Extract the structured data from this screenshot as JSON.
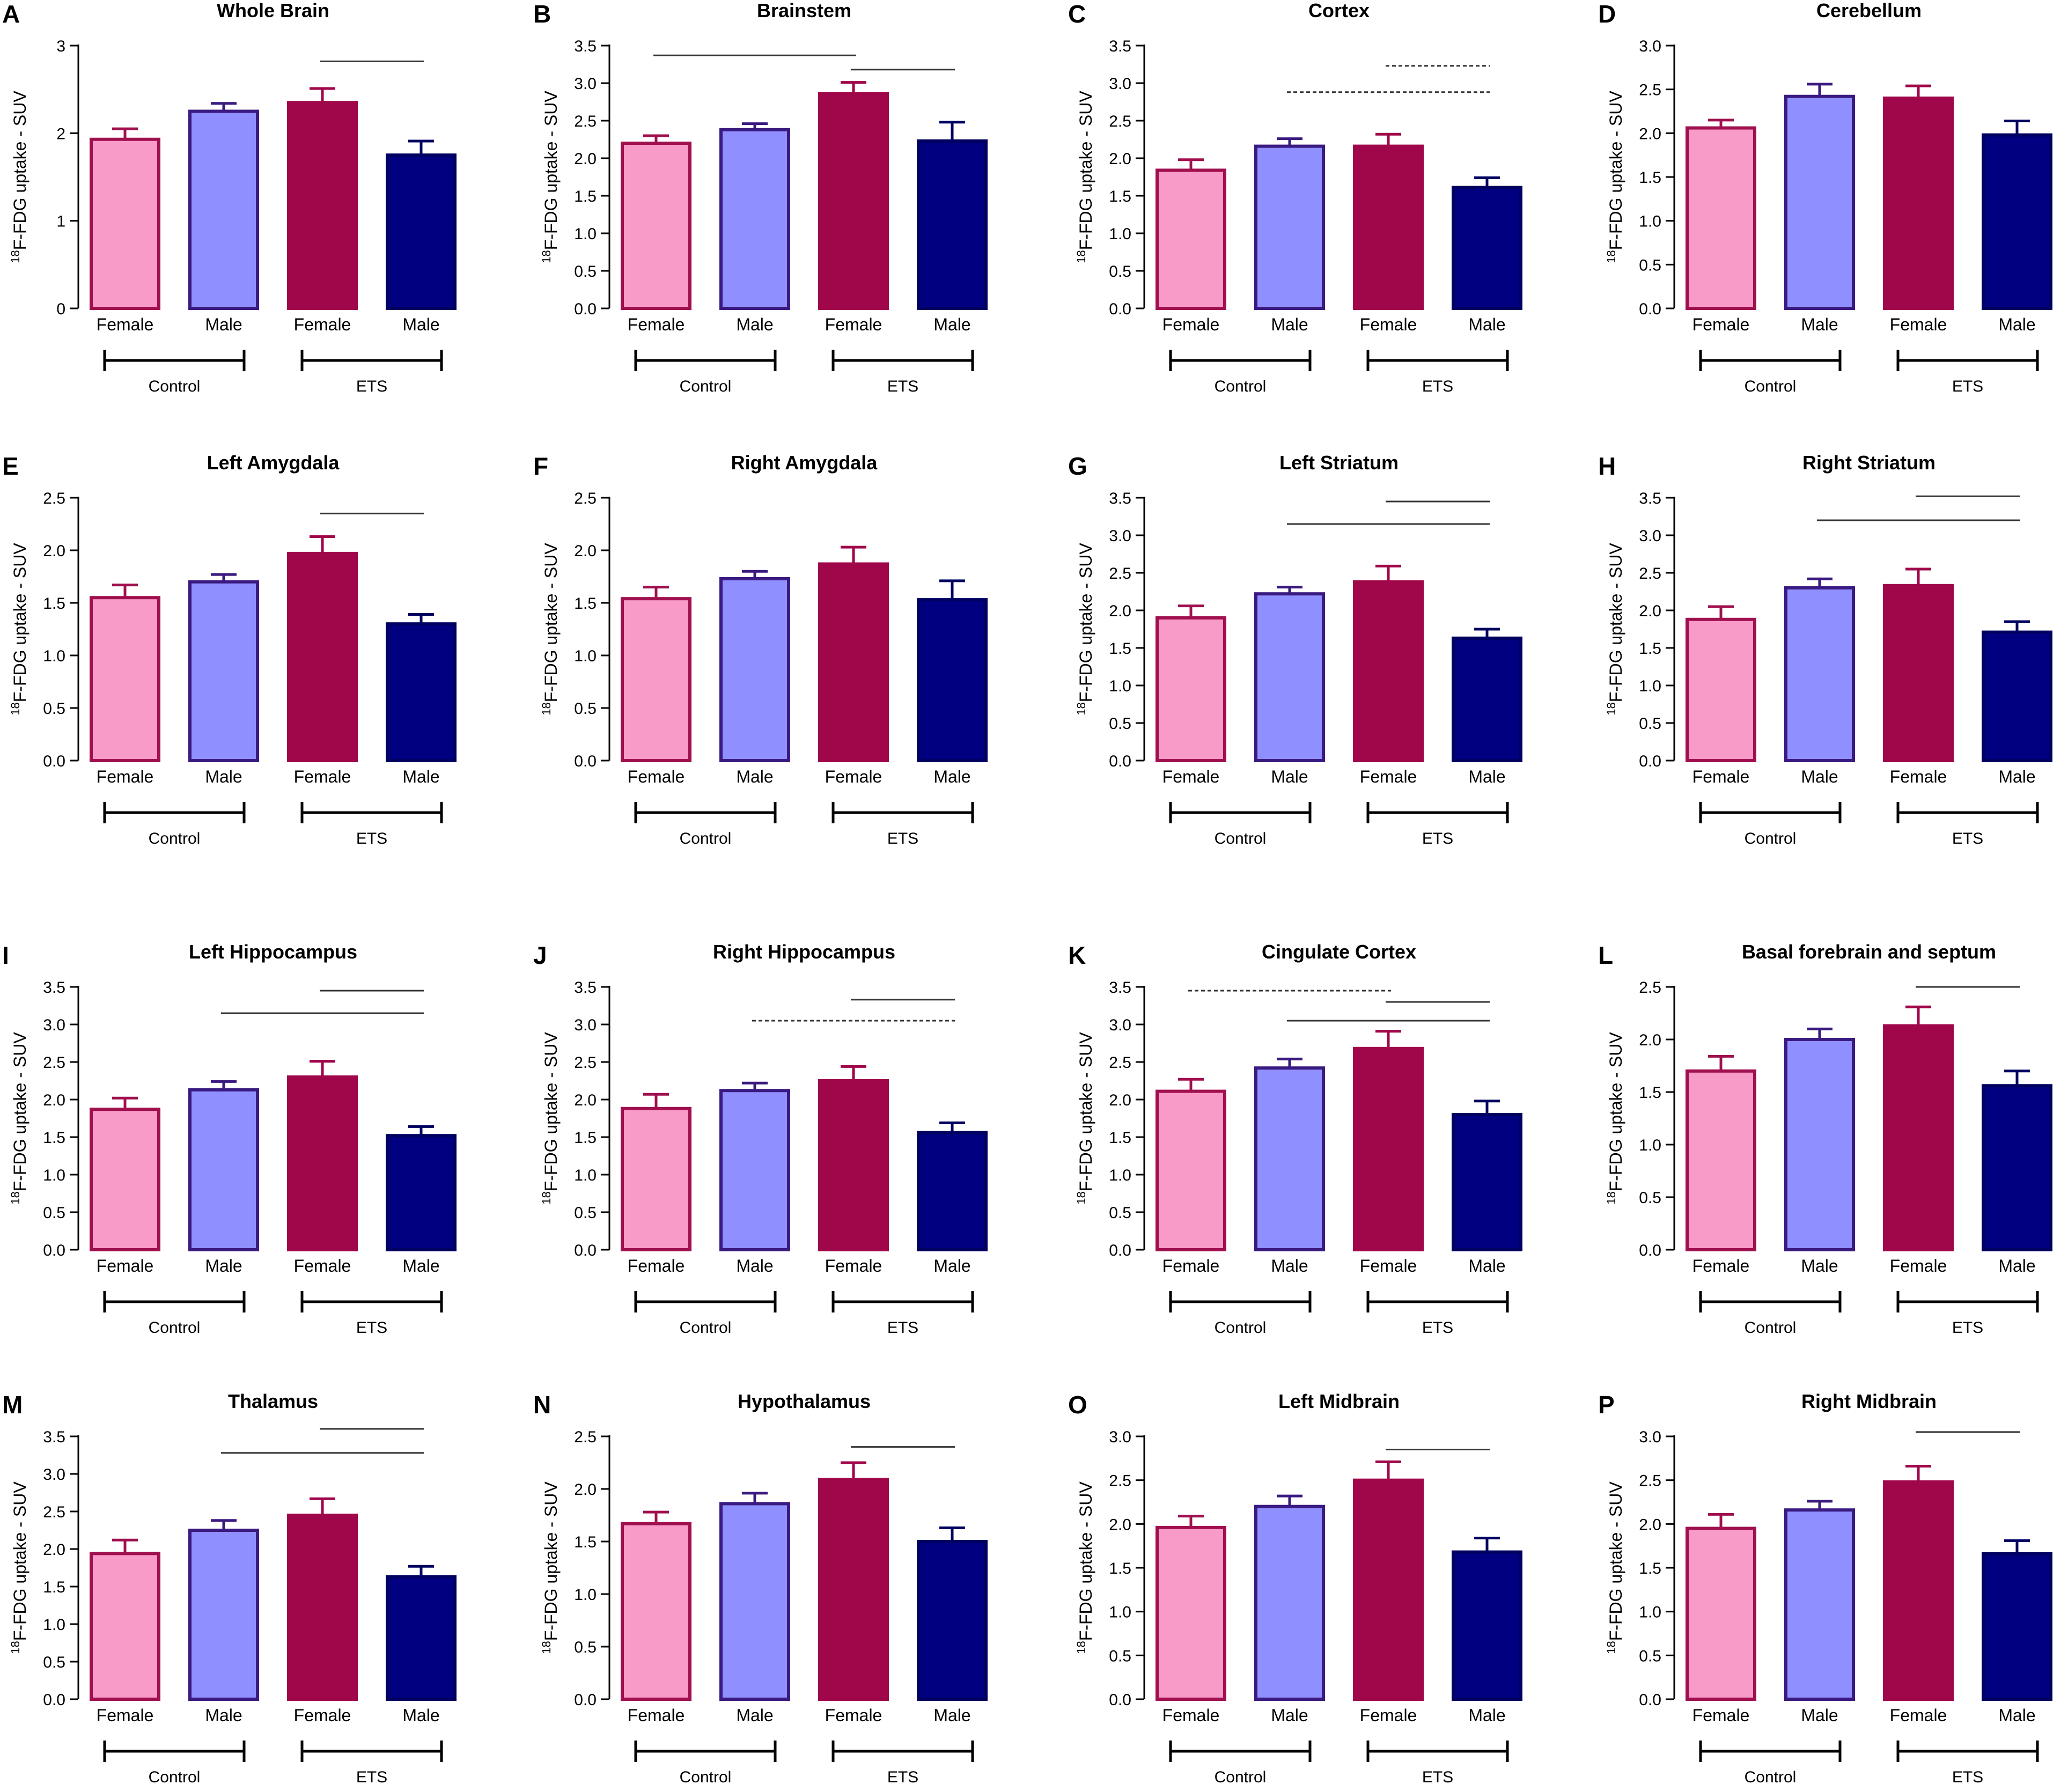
{
  "figure": {
    "ylabel_sup": "18",
    "ylabel_text": "F-FDG uptake - SUV",
    "groups": [
      "Control",
      "ETS"
    ],
    "categories": [
      "Female",
      "Male",
      "Female",
      "Male"
    ],
    "colors": {
      "control_female_fill": "#F89BC8",
      "control_female_stroke": "#A0104E",
      "control_male_fill": "#8F8FFF",
      "control_male_stroke": "#3A1A80",
      "ets_female_fill": "#A0064A",
      "ets_female_stroke": "#A0064A",
      "ets_male_fill": "#000080",
      "ets_male_stroke": "#000060"
    }
  },
  "chart_data": [
    {
      "letter": "A",
      "type": "bar",
      "title": "Whole Brain",
      "ylabel": "18F-FDG uptake - SUV",
      "ylim": [
        0,
        3
      ],
      "yticks": [
        "0",
        "1",
        "2",
        "3"
      ],
      "categories": [
        "Female",
        "Male",
        "Female",
        "Male"
      ],
      "groups": [
        "Control",
        "ETS"
      ],
      "values": [
        1.93,
        2.25,
        2.35,
        1.75
      ],
      "errors": [
        0.12,
        0.09,
        0.16,
        0.16
      ],
      "sig_lines": [
        {
          "from": 2,
          "to": 3,
          "y": 2.82,
          "dashed": false
        }
      ]
    },
    {
      "letter": "B",
      "type": "bar",
      "title": "Brainstem",
      "ylabel": "18F-FDG uptake - SUV",
      "ylim": [
        0,
        3.5
      ],
      "yticks": [
        "0.0",
        "0.5",
        "1.0",
        "1.5",
        "2.0",
        "2.5",
        "3.0",
        "3.5"
      ],
      "categories": [
        "Female",
        "Male",
        "Female",
        "Male"
      ],
      "groups": [
        "Control",
        "ETS"
      ],
      "values": [
        2.2,
        2.38,
        2.86,
        2.23
      ],
      "errors": [
        0.1,
        0.08,
        0.15,
        0.25
      ],
      "sig_lines": [
        {
          "from": 0,
          "to": 2,
          "y": 3.37,
          "dashed": false
        },
        {
          "from": 2,
          "to": 3,
          "y": 3.18,
          "dashed": false
        }
      ]
    },
    {
      "letter": "C",
      "type": "bar",
      "title": "Cortex",
      "ylabel": "18F-FDG uptake - SUV",
      "ylim": [
        0,
        3.5
      ],
      "yticks": [
        "0.0",
        "0.5",
        "1.0",
        "1.5",
        "2.0",
        "2.5",
        "3.0",
        "3.5"
      ],
      "categories": [
        "Female",
        "Male",
        "Female",
        "Male"
      ],
      "groups": [
        "Control",
        "ETS"
      ],
      "values": [
        1.84,
        2.16,
        2.16,
        1.61
      ],
      "errors": [
        0.14,
        0.1,
        0.16,
        0.13
      ],
      "sig_lines": [
        {
          "from": 2,
          "to": 3,
          "y": 3.23,
          "dashed": true
        },
        {
          "from": 1,
          "to": 3,
          "y": 2.88,
          "dashed": true
        }
      ]
    },
    {
      "letter": "D",
      "type": "bar",
      "title": "Cerebellum",
      "ylabel": "18F-FDG uptake - SUV",
      "ylim": [
        0,
        3
      ],
      "yticks": [
        "0.0",
        "0.5",
        "1.0",
        "1.5",
        "2.0",
        "2.5",
        "3.0"
      ],
      "categories": [
        "Female",
        "Male",
        "Female",
        "Male"
      ],
      "groups": [
        "Control",
        "ETS"
      ],
      "values": [
        2.06,
        2.42,
        2.4,
        1.98
      ],
      "errors": [
        0.09,
        0.14,
        0.14,
        0.16
      ],
      "sig_lines": []
    },
    {
      "letter": "E",
      "type": "bar",
      "title": "Left Amygdala",
      "ylabel": "18F-FDG uptake - SUV",
      "ylim": [
        0,
        2.5
      ],
      "yticks": [
        "0.0",
        "0.5",
        "1.0",
        "1.5",
        "2.0",
        "2.5"
      ],
      "categories": [
        "Female",
        "Male",
        "Female",
        "Male"
      ],
      "groups": [
        "Control",
        "ETS"
      ],
      "values": [
        1.55,
        1.7,
        1.97,
        1.3
      ],
      "errors": [
        0.12,
        0.07,
        0.16,
        0.09
      ],
      "sig_lines": [
        {
          "from": 2,
          "to": 3,
          "y": 2.35,
          "dashed": false
        }
      ]
    },
    {
      "letter": "F",
      "type": "bar",
      "title": "Right Amygdala",
      "ylabel": "18F-FDG uptake - SUV",
      "ylim": [
        0,
        2.5
      ],
      "yticks": [
        "0.0",
        "0.5",
        "1.0",
        "1.5",
        "2.0",
        "2.5"
      ],
      "categories": [
        "Female",
        "Male",
        "Female",
        "Male"
      ],
      "groups": [
        "Control",
        "ETS"
      ],
      "values": [
        1.54,
        1.73,
        1.87,
        1.53
      ],
      "errors": [
        0.11,
        0.07,
        0.16,
        0.18
      ],
      "sig_lines": []
    },
    {
      "letter": "G",
      "type": "bar",
      "title": "Left Striatum",
      "ylabel": "18F-FDG uptake - SUV",
      "ylim": [
        0,
        3.5
      ],
      "yticks": [
        "0.0",
        "0.5",
        "1.0",
        "1.5",
        "2.0",
        "2.5",
        "3.0",
        "3.5"
      ],
      "categories": [
        "Female",
        "Male",
        "Female",
        "Male"
      ],
      "groups": [
        "Control",
        "ETS"
      ],
      "values": [
        1.9,
        2.22,
        2.38,
        1.63
      ],
      "errors": [
        0.16,
        0.09,
        0.21,
        0.12
      ],
      "sig_lines": [
        {
          "from": 2,
          "to": 3,
          "y": 3.45,
          "dashed": false
        },
        {
          "from": 1,
          "to": 3,
          "y": 3.15,
          "dashed": false
        }
      ]
    },
    {
      "letter": "H",
      "type": "bar",
      "title": "Right Striatum",
      "ylabel": "18F-FDG uptake - SUV",
      "ylim": [
        0,
        3.5
      ],
      "yticks": [
        "0.0",
        "0.5",
        "1.0",
        "1.5",
        "2.0",
        "2.5",
        "3.0",
        "3.5"
      ],
      "categories": [
        "Female",
        "Male",
        "Female",
        "Male"
      ],
      "groups": [
        "Control",
        "ETS"
      ],
      "values": [
        1.88,
        2.3,
        2.33,
        1.71
      ],
      "errors": [
        0.17,
        0.12,
        0.22,
        0.14
      ],
      "sig_lines": [
        {
          "from": 2,
          "to": 3,
          "y": 3.52,
          "dashed": false
        },
        {
          "from": 1,
          "to": 3,
          "y": 3.2,
          "dashed": false
        }
      ]
    },
    {
      "letter": "I",
      "type": "bar",
      "title": "Left Hippocampus",
      "ylabel": "18F-FDG uptake - SUV",
      "ylim": [
        0,
        3.5
      ],
      "yticks": [
        "0.0",
        "0.5",
        "1.0",
        "1.5",
        "2.0",
        "2.5",
        "3.0",
        "3.5"
      ],
      "categories": [
        "Female",
        "Male",
        "Female",
        "Male"
      ],
      "groups": [
        "Control",
        "ETS"
      ],
      "values": [
        1.87,
        2.13,
        2.3,
        1.52
      ],
      "errors": [
        0.15,
        0.11,
        0.21,
        0.12
      ],
      "sig_lines": [
        {
          "from": 2,
          "to": 3,
          "y": 3.45,
          "dashed": false
        },
        {
          "from": 1,
          "to": 3,
          "y": 3.15,
          "dashed": false
        }
      ]
    },
    {
      "letter": "J",
      "type": "bar",
      "title": "Right Hippocampus",
      "ylabel": "18F-FDG uptake - SUV",
      "ylim": [
        0,
        3.5
      ],
      "yticks": [
        "0.0",
        "0.5",
        "1.0",
        "1.5",
        "2.0",
        "2.5",
        "3.0",
        "3.5"
      ],
      "categories": [
        "Female",
        "Male",
        "Female",
        "Male"
      ],
      "groups": [
        "Control",
        "ETS"
      ],
      "values": [
        1.88,
        2.12,
        2.25,
        1.56
      ],
      "errors": [
        0.19,
        0.1,
        0.19,
        0.13
      ],
      "sig_lines": [
        {
          "from": 2,
          "to": 3,
          "y": 3.33,
          "dashed": false
        },
        {
          "from": 1,
          "to": 3,
          "y": 3.05,
          "dashed": true
        }
      ]
    },
    {
      "letter": "K",
      "type": "bar",
      "title": "Cingulate Cortex",
      "ylabel": "18F-FDG uptake - SUV",
      "ylim": [
        0,
        3.5
      ],
      "yticks": [
        "0.0",
        "0.5",
        "1.0",
        "1.5",
        "2.0",
        "2.5",
        "3.0",
        "3.5"
      ],
      "categories": [
        "Female",
        "Male",
        "Female",
        "Male"
      ],
      "groups": [
        "Control",
        "ETS"
      ],
      "values": [
        2.11,
        2.42,
        2.68,
        1.8
      ],
      "errors": [
        0.16,
        0.12,
        0.23,
        0.18
      ],
      "sig_lines": [
        {
          "from": 0,
          "to": 2,
          "y": 3.45,
          "dashed": true
        },
        {
          "from": 2,
          "to": 3,
          "y": 3.3,
          "dashed": false
        },
        {
          "from": 1,
          "to": 3,
          "y": 3.05,
          "dashed": false
        }
      ]
    },
    {
      "letter": "L",
      "type": "bar",
      "title": "Basal forebrain and septum",
      "ylabel": "18F-FDG uptake - SUV",
      "ylim": [
        0,
        2.5
      ],
      "yticks": [
        "0.0",
        "0.5",
        "1.0",
        "1.5",
        "2.0",
        "2.5"
      ],
      "categories": [
        "Female",
        "Male",
        "Female",
        "Male"
      ],
      "groups": [
        "Control",
        "ETS"
      ],
      "values": [
        1.7,
        2.0,
        2.13,
        1.56
      ],
      "errors": [
        0.14,
        0.1,
        0.18,
        0.14
      ],
      "sig_lines": [
        {
          "from": 2,
          "to": 3,
          "y": 2.5,
          "dashed": false
        }
      ]
    },
    {
      "letter": "M",
      "type": "bar",
      "title": "Thalamus",
      "ylabel": "18F-FDG uptake - SUV",
      "ylim": [
        0,
        3.5
      ],
      "yticks": [
        "0.0",
        "0.5",
        "1.0",
        "1.5",
        "2.0",
        "2.5",
        "3.0",
        "3.5"
      ],
      "categories": [
        "Female",
        "Male",
        "Female",
        "Male"
      ],
      "groups": [
        "Control",
        "ETS"
      ],
      "values": [
        1.94,
        2.25,
        2.45,
        1.63
      ],
      "errors": [
        0.18,
        0.13,
        0.22,
        0.14
      ],
      "sig_lines": [
        {
          "from": 2,
          "to": 3,
          "y": 3.6,
          "dashed": false
        },
        {
          "from": 1,
          "to": 3,
          "y": 3.28,
          "dashed": false
        }
      ]
    },
    {
      "letter": "N",
      "type": "bar",
      "title": "Hypothalamus",
      "ylabel": "18F-FDG uptake - SUV",
      "ylim": [
        0,
        2.5
      ],
      "yticks": [
        "0.0",
        "0.5",
        "1.0",
        "1.5",
        "2.0",
        "2.5"
      ],
      "categories": [
        "Female",
        "Male",
        "Female",
        "Male"
      ],
      "groups": [
        "Control",
        "ETS"
      ],
      "values": [
        1.67,
        1.86,
        2.09,
        1.5
      ],
      "errors": [
        0.11,
        0.1,
        0.16,
        0.13
      ],
      "sig_lines": [
        {
          "from": 2,
          "to": 3,
          "y": 2.4,
          "dashed": false
        }
      ]
    },
    {
      "letter": "O",
      "type": "bar",
      "title": "Left Midbrain",
      "ylabel": "18F-FDG uptake - SUV",
      "ylim": [
        0,
        3
      ],
      "yticks": [
        "0.0",
        "0.5",
        "1.0",
        "1.5",
        "2.0",
        "2.5",
        "3.0"
      ],
      "categories": [
        "Female",
        "Male",
        "Female",
        "Male"
      ],
      "groups": [
        "Control",
        "ETS"
      ],
      "values": [
        1.96,
        2.2,
        2.5,
        1.68
      ],
      "errors": [
        0.13,
        0.12,
        0.21,
        0.16
      ],
      "sig_lines": [
        {
          "from": 2,
          "to": 3,
          "y": 2.85,
          "dashed": false
        }
      ]
    },
    {
      "letter": "P",
      "type": "bar",
      "title": "Right Midbrain",
      "ylabel": "18F-FDG uptake - SUV",
      "ylim": [
        0,
        3
      ],
      "yticks": [
        "0.0",
        "0.5",
        "1.0",
        "1.5",
        "2.0",
        "2.5",
        "3.0"
      ],
      "categories": [
        "Female",
        "Male",
        "Female",
        "Male"
      ],
      "groups": [
        "Control",
        "ETS"
      ],
      "values": [
        1.95,
        2.16,
        2.48,
        1.66
      ],
      "errors": [
        0.16,
        0.1,
        0.18,
        0.15
      ],
      "sig_lines": [
        {
          "from": 2,
          "to": 3,
          "y": 3.05,
          "dashed": false
        }
      ]
    }
  ]
}
